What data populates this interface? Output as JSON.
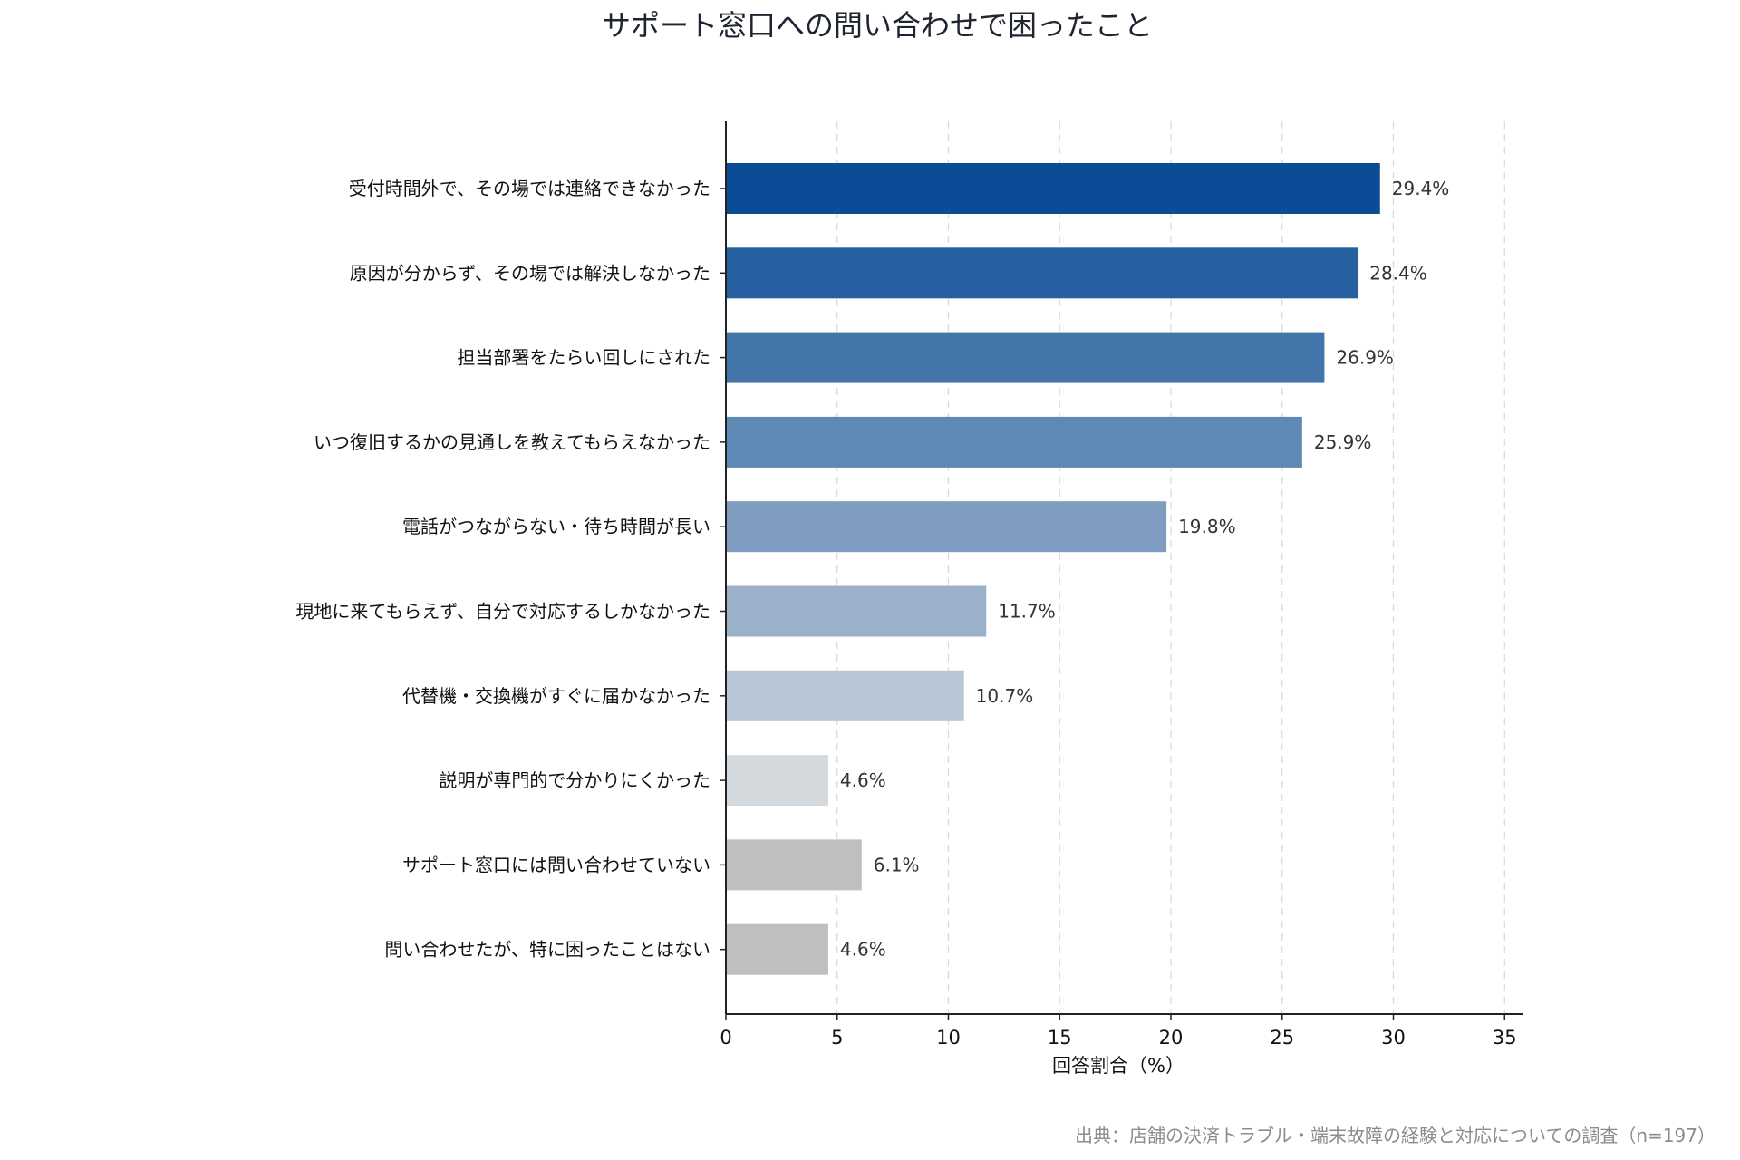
{
  "chart_data": {
    "type": "bar",
    "orientation": "horizontal",
    "title": "サポート窓口への問い合わせで困ったこと",
    "xlabel": "回答割合（%）",
    "ylabel": "",
    "xlim": [
      0,
      36
    ],
    "xticks": [
      "0",
      "5",
      "10",
      "15",
      "20",
      "25",
      "30",
      "35"
    ],
    "grid": "vertical dashed",
    "categories": [
      "受付時間外で、その場では連絡できなかった",
      "原因が分からず、その場では解決しなかった",
      "担当部署をたらい回しにされた",
      "いつ復旧するかの見通しを教えてもらえなかった",
      "電話がつながらない・待ち時間が長い",
      "現地に来てもらえず、自分で対応するしかなかった",
      "代替機・交換機がすぐに届かなかった",
      "説明が専門的で分かりにくかった",
      "サポート窓口には問い合わせていない",
      "問い合わせたが、特に困ったことはない"
    ],
    "values": [
      29.4,
      28.4,
      26.9,
      25.9,
      19.8,
      11.7,
      10.7,
      4.6,
      6.1,
      4.6
    ],
    "value_labels": [
      "29.4%",
      "28.4%",
      "26.9%",
      "25.9%",
      "19.8%",
      "11.7%",
      "10.7%",
      "4.6%",
      "6.1%",
      "4.6%"
    ],
    "colors": [
      "#0b4c96",
      "#2760a0",
      "#4475aa",
      "#5f89b5",
      "#7f9dc0",
      "#9bb0c9",
      "#b8c6d5",
      "#d4d9de",
      "#bfbfbf",
      "#bfbfbf"
    ],
    "source": "出典：店舗の決済トラブル・端末故障の経験と対応についての調査（n=197）"
  }
}
